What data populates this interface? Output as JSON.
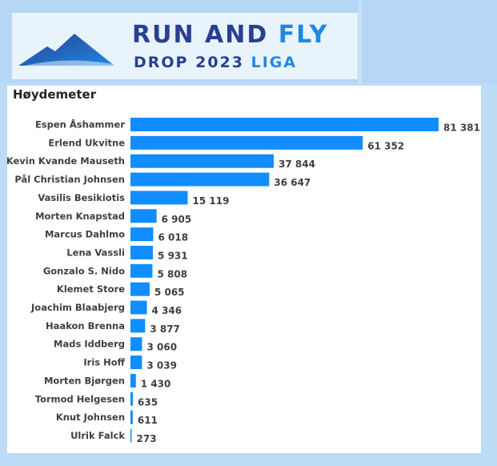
{
  "logo": {
    "line1_a": "RUN AND ",
    "line1_b": "FLY",
    "line2_a": "DROP 2023 ",
    "line2_b": "LIGA",
    "mountain_icon": "mountain-icon",
    "dark_color": "#2a3f8f",
    "accent_color": "#1e88e5"
  },
  "chart_data": {
    "type": "bar",
    "orientation": "horizontal",
    "title": "Høydemeter",
    "bar_color": "#118dff",
    "categories": [
      "Espen Åshammer",
      "Erlend Ukvitne",
      "Kevin Kvande Mauseth",
      "Pål Christian Johnsen",
      "Vasilis Besikiotis",
      "Morten Knapstad",
      "Marcus Dahlmo",
      "Lena Vassli",
      "Gonzalo S. Nido",
      "Klemet Store",
      "Joachim Blaabjerg",
      "Haakon Brenna",
      "Mads Iddberg",
      "Iris Hoff",
      "Morten Bjørgen",
      "Tormod Helgesen",
      "Knut Johnsen",
      "Ulrik Falck"
    ],
    "values": [
      81381,
      61352,
      37844,
      36647,
      15119,
      6905,
      6018,
      5931,
      5808,
      5065,
      4346,
      3877,
      3060,
      3039,
      1430,
      635,
      611,
      273
    ],
    "value_labels": [
      "81 381",
      "61 352",
      "37 844",
      "36 647",
      "15 119",
      "6 905",
      "6 018",
      "5 931",
      "5 808",
      "5 065",
      "4 346",
      "3 877",
      "3 060",
      "3 039",
      "1 430",
      "635",
      "611",
      "273"
    ],
    "xlim": [
      0,
      81381
    ],
    "grid": false,
    "legend": "none"
  }
}
